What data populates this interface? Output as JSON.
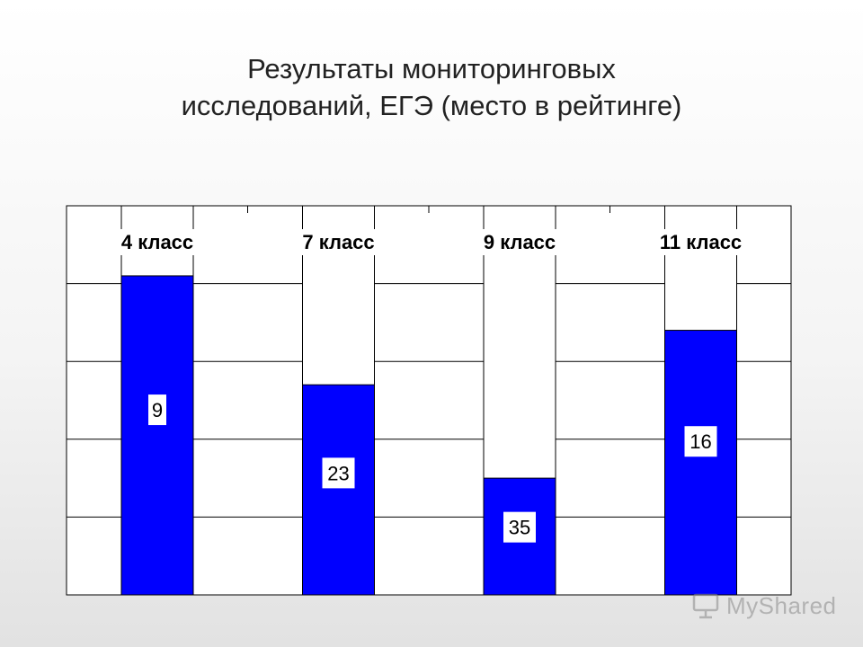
{
  "title_lines": [
    "Результаты мониторинговых",
    "исследований, ЕГЭ (место в рейтинге)"
  ],
  "colors": {
    "bar": "#0000ff",
    "bar_stroke": "#000000",
    "label_box": "#ffffff",
    "grid": "#000000",
    "plot_bg": "#ffffff"
  },
  "chart_data": {
    "type": "bar",
    "categories": [
      "4 класс",
      "7 класс",
      "9 класс",
      "11 класс"
    ],
    "values": [
      9,
      23,
      35,
      16
    ],
    "ylim": [
      0,
      50
    ],
    "y_reversed": true,
    "y_tick_step": 10,
    "grid": true,
    "category_labels_position": "inside-top",
    "data_labels": [
      "9",
      "23",
      "35",
      "16"
    ],
    "xlabel": "",
    "ylabel": ""
  },
  "watermark": {
    "text": "MyShared",
    "icon": "projector-screen-icon"
  }
}
